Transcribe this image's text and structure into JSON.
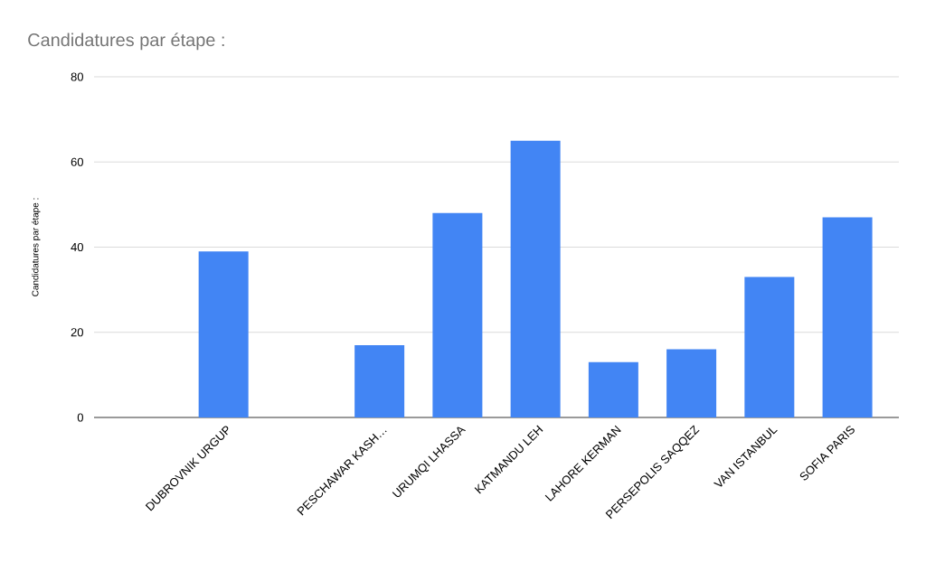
{
  "chart_data": {
    "type": "bar",
    "title": "Candidatures par étape :",
    "ylabel": "Candidatures par étape :",
    "categories": [
      null,
      "DUBROVNIK URGUP",
      null,
      "PESCHAWAR KASH…",
      "URUMQI LHASSA",
      "KATMANDU LEH",
      "LAHORE KERMAN",
      "PERSEPOLIS SAQQEZ",
      "VAN ISTANBUL",
      "SOFIA PARIS"
    ],
    "values": [
      null,
      39,
      null,
      17,
      48,
      65,
      13,
      16,
      33,
      47
    ],
    "color": "#4285f4",
    "ylim": [
      0,
      80
    ],
    "yticks": [
      0,
      20,
      40,
      60,
      80
    ],
    "grid": "y"
  }
}
